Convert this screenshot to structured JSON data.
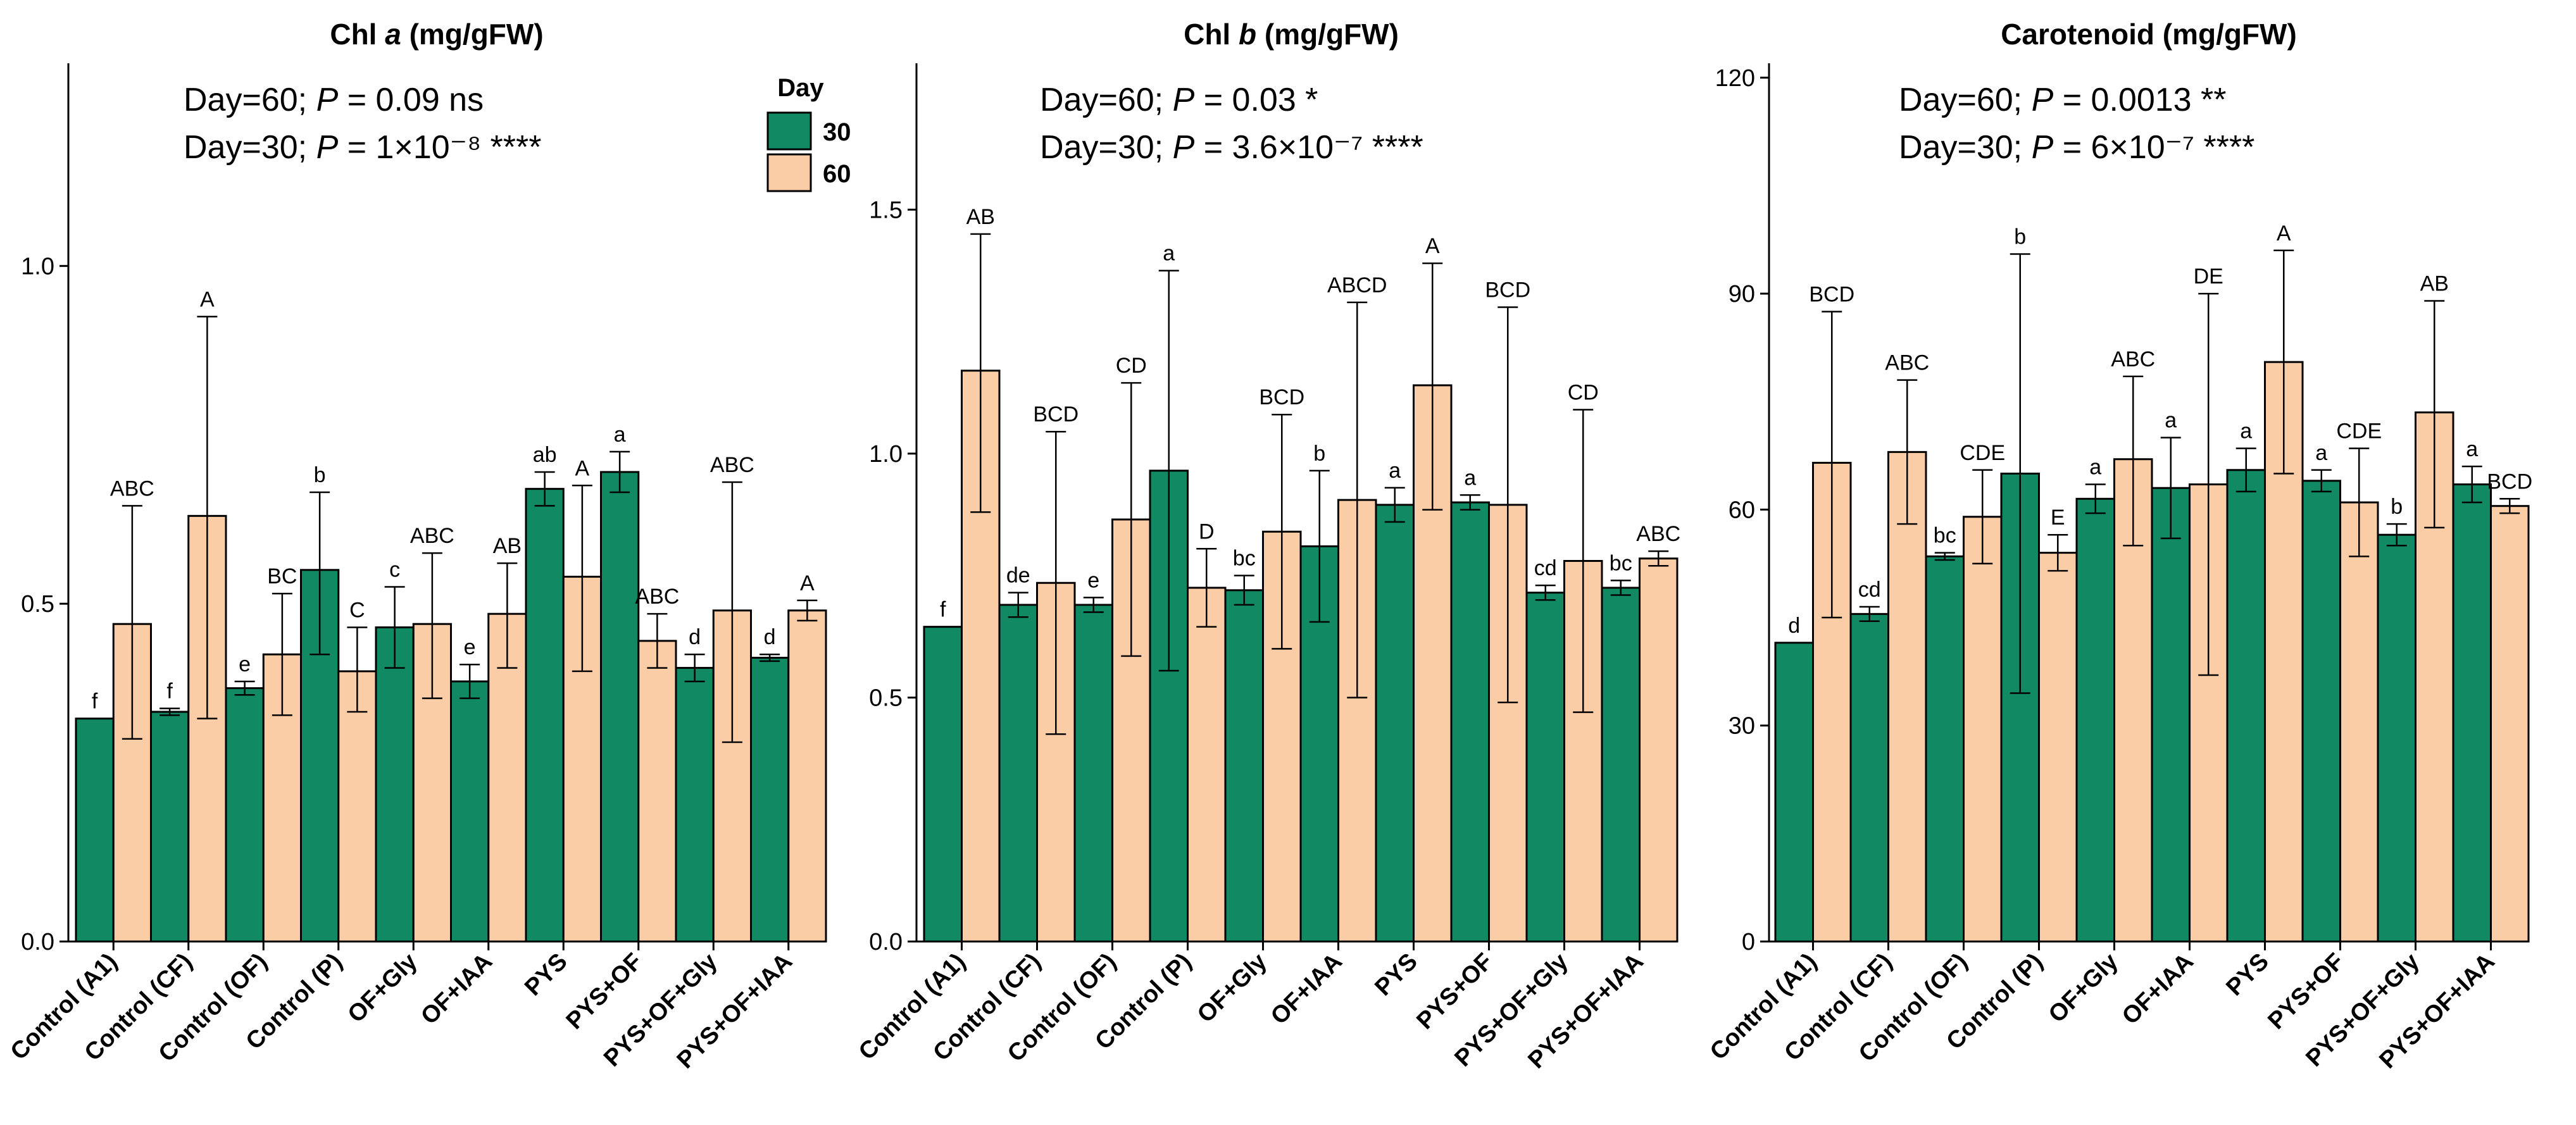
{
  "legend": {
    "title": "Day",
    "entries": [
      {
        "label": "30",
        "color": "#118a63"
      },
      {
        "label": "60",
        "color": "#fbcda6"
      }
    ]
  },
  "chart_data": [
    {
      "type": "bar",
      "title_before": "Chl ",
      "title_italic": "a",
      "title_after": " (mg/gFW)",
      "stats": [
        {
          "prefix": "Day=60;  ",
          "p": "P",
          "text": " = 0.09 ns"
        },
        {
          "prefix": "Day=30;  ",
          "p": "P",
          "text": " = 1×10⁻⁸ ****"
        }
      ],
      "categories": [
        "Control (A1)",
        "Control (CF)",
        "Control (OF)",
        "Control (P)",
        "OF+Gly",
        "OF+IAA",
        "PYS",
        "PYS+OF",
        "PYS+OF+Gly",
        "PYS+OF+IAA"
      ],
      "ylim": [
        0,
        1.3
      ],
      "yticks": [
        0.0,
        0.5,
        1.0
      ],
      "ytick_labels": [
        "0.0",
        "0.5",
        "1.0"
      ],
      "series": [
        {
          "name": "30",
          "color": "#118a63",
          "values": [
            0.33,
            0.34,
            0.375,
            0.55,
            0.465,
            0.385,
            0.67,
            0.695,
            0.405,
            0.42
          ],
          "err_low": [
            0.0,
            0.005,
            0.01,
            0.125,
            0.06,
            0.025,
            0.025,
            0.03,
            0.02,
            0.005
          ],
          "err_high": [
            0.0,
            0.005,
            0.01,
            0.115,
            0.06,
            0.025,
            0.025,
            0.03,
            0.02,
            0.005
          ],
          "labels": [
            "f",
            "f",
            "e",
            "b",
            "c",
            "e",
            "ab",
            "a",
            "d",
            "d"
          ]
        },
        {
          "name": "60",
          "color": "#fbcda6",
          "values": [
            0.47,
            0.63,
            0.425,
            0.4,
            0.47,
            0.485,
            0.54,
            0.445,
            0.49,
            0.49
          ],
          "err_low": [
            0.17,
            0.3,
            0.09,
            0.06,
            0.11,
            0.08,
            0.14,
            0.04,
            0.195,
            0.015
          ],
          "err_high": [
            0.175,
            0.295,
            0.09,
            0.065,
            0.105,
            0.075,
            0.135,
            0.04,
            0.19,
            0.015
          ],
          "labels": [
            "ABC",
            "A",
            "BC",
            "C",
            "ABC",
            "AB",
            "A",
            "ABC",
            "ABC",
            "A"
          ]
        }
      ]
    },
    {
      "type": "bar",
      "title_before": "Chl ",
      "title_italic": "b",
      "title_after": " (mg/gFW)",
      "stats": [
        {
          "prefix": "Day=60;  ",
          "p": "P",
          "text": " = 0.03 *"
        },
        {
          "prefix": "Day=30;  ",
          "p": "P",
          "text": " = 3.6×10⁻⁷ ****"
        }
      ],
      "categories": [
        "Control (A1)",
        "Control (CF)",
        "Control (OF)",
        "Control (P)",
        "OF+Gly",
        "OF+IAA",
        "PYS",
        "PYS+OF",
        "PYS+OF+Gly",
        "PYS+OF+IAA"
      ],
      "ylim": [
        0,
        1.8
      ],
      "yticks": [
        0.0,
        0.5,
        1.0,
        1.5
      ],
      "ytick_labels": [
        "0.0",
        "0.5",
        "1.0",
        "1.5"
      ],
      "series": [
        {
          "name": "30",
          "color": "#118a63",
          "values": [
            0.645,
            0.69,
            0.69,
            0.965,
            0.72,
            0.81,
            0.895,
            0.9,
            0.715,
            0.725
          ],
          "err_low": [
            0.0,
            0.025,
            0.015,
            0.41,
            0.03,
            0.155,
            0.035,
            0.015,
            0.015,
            0.015
          ],
          "err_high": [
            0.0,
            0.025,
            0.015,
            0.41,
            0.03,
            0.155,
            0.035,
            0.015,
            0.015,
            0.015
          ],
          "labels": [
            "f",
            "de",
            "e",
            "a",
            "bc",
            "b",
            "a",
            "a",
            "cd",
            "bc"
          ]
        },
        {
          "name": "60",
          "color": "#fbcda6",
          "values": [
            1.17,
            0.735,
            0.865,
            0.725,
            0.84,
            0.905,
            1.14,
            0.895,
            0.78,
            0.785
          ],
          "err_low": [
            0.29,
            0.31,
            0.28,
            0.08,
            0.24,
            0.405,
            0.255,
            0.405,
            0.31,
            0.015
          ],
          "err_high": [
            0.28,
            0.31,
            0.28,
            0.08,
            0.24,
            0.405,
            0.25,
            0.405,
            0.31,
            0.015
          ],
          "labels": [
            "AB",
            "BCD",
            "CD",
            "D",
            "BCD",
            "ABCD",
            "A",
            "BCD",
            "CD",
            "ABC"
          ]
        }
      ]
    },
    {
      "type": "bar",
      "title_before": "Carotenoid (mg/gFW)",
      "title_italic": "",
      "title_after": "",
      "stats": [
        {
          "prefix": "Day=60;  ",
          "p": "P",
          "text": " = 0.0013 **"
        },
        {
          "prefix": "Day=30;  ",
          "p": "P",
          "text": " = 6×10⁻⁷ ****"
        }
      ],
      "categories": [
        "Control (A1)",
        "Control (CF)",
        "Control (OF)",
        "Control (P)",
        "OF+Gly",
        "OF+IAA",
        "PYS",
        "PYS+OF",
        "PYS+OF+Gly",
        "PYS+OF+IAA"
      ],
      "ylim": [
        0,
        122
      ],
      "yticks": [
        0,
        30,
        60,
        90,
        120
      ],
      "ytick_labels": [
        "0",
        "30",
        "60",
        "90",
        "120"
      ],
      "series": [
        {
          "name": "30",
          "color": "#118a63",
          "values": [
            41.5,
            45.5,
            53.5,
            65,
            61.5,
            63,
            65.5,
            64,
            56.5,
            63.5
          ],
          "err_low": [
            0.0,
            1.0,
            0.5,
            30.5,
            2.0,
            7.0,
            3.0,
            1.5,
            1.5,
            2.5
          ],
          "err_high": [
            0.0,
            1.0,
            0.5,
            30.5,
            2.0,
            7.0,
            3.0,
            1.5,
            1.5,
            2.5
          ],
          "labels": [
            "d",
            "cd",
            "bc",
            "b",
            "a",
            "a",
            "a",
            "a",
            "b",
            "a"
          ]
        },
        {
          "name": "60",
          "color": "#fbcda6",
          "values": [
            66.5,
            68,
            59,
            54,
            67,
            63.5,
            80.5,
            61,
            73.5,
            60.5
          ],
          "err_low": [
            21.5,
            10,
            6.5,
            2.5,
            12,
            26.5,
            15.5,
            7.5,
            16,
            1.0
          ],
          "err_high": [
            21,
            10,
            6.5,
            2.5,
            11.5,
            26.5,
            15.5,
            7.5,
            15.5,
            1.0
          ],
          "labels": [
            "BCD",
            "ABC",
            "CDE",
            "E",
            "ABC",
            "DE",
            "A",
            "CDE",
            "AB",
            "BCD"
          ]
        }
      ]
    }
  ]
}
